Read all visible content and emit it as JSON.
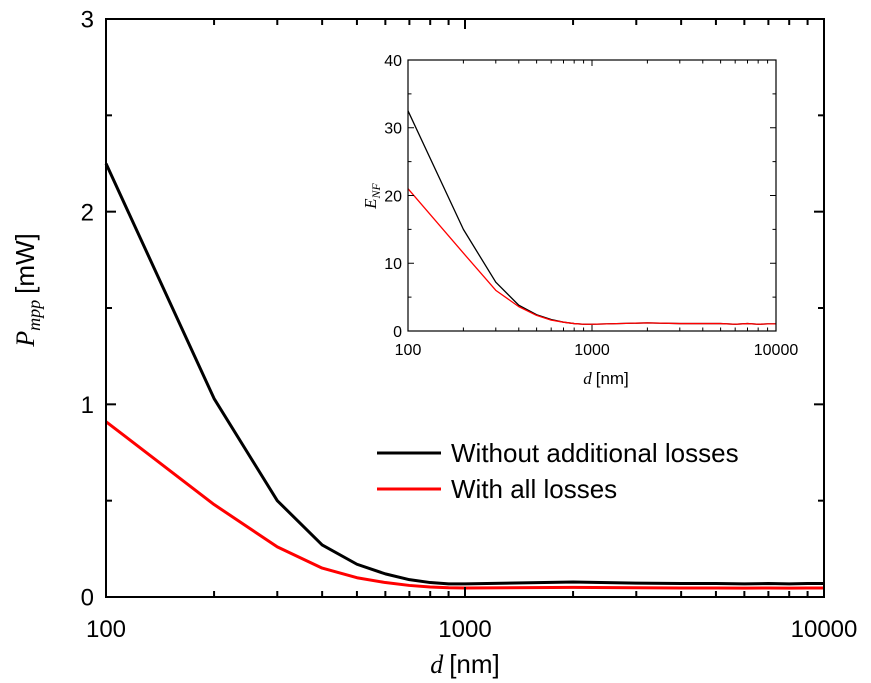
{
  "chart_data": [
    {
      "type": "line",
      "xscale": "log",
      "xlim": [
        100,
        10000
      ],
      "ylim": [
        0,
        3
      ],
      "xticks": [
        100,
        1000,
        10000
      ],
      "yticks": [
        0,
        1,
        2,
        3
      ],
      "xtick_labels": [
        "100",
        "1000",
        "10000"
      ],
      "ytick_labels": [
        "0",
        "1",
        "2",
        "3"
      ],
      "xlabel": {
        "var": "d",
        "unit": "[nm]"
      },
      "ylabel": {
        "var": "P",
        "sub": "mpp",
        "unit": "[mW]"
      },
      "legend_position": "lower-right",
      "series": [
        {
          "name": "Without additional losses",
          "color": "#000000",
          "x": [
            100,
            200,
            300,
            400,
            500,
            600,
            700,
            800,
            900,
            1000,
            2000,
            3000,
            4000,
            5000,
            6000,
            7000,
            8000,
            9000,
            10000
          ],
          "y": [
            2.25,
            1.03,
            0.5,
            0.27,
            0.17,
            0.12,
            0.09,
            0.075,
            0.068,
            0.068,
            0.078,
            0.072,
            0.07,
            0.07,
            0.068,
            0.07,
            0.068,
            0.07,
            0.07
          ]
        },
        {
          "name": "With all losses",
          "color": "#ff0000",
          "x": [
            100,
            200,
            300,
            400,
            500,
            600,
            700,
            800,
            900,
            1000,
            2000,
            3000,
            4000,
            5000,
            6000,
            7000,
            8000,
            9000,
            10000
          ],
          "y": [
            0.91,
            0.48,
            0.26,
            0.15,
            0.1,
            0.075,
            0.06,
            0.052,
            0.048,
            0.047,
            0.05,
            0.048,
            0.047,
            0.047,
            0.046,
            0.047,
            0.046,
            0.047,
            0.047
          ]
        }
      ]
    },
    {
      "type": "line",
      "xscale": "log",
      "xlim": [
        100,
        10000
      ],
      "ylim": [
        0,
        40
      ],
      "xticks": [
        100,
        1000,
        10000
      ],
      "yticks": [
        0,
        10,
        20,
        30,
        40
      ],
      "xtick_labels": [
        "100",
        "1000",
        "10000"
      ],
      "ytick_labels": [
        "0",
        "10",
        "20",
        "30",
        "40"
      ],
      "xlabel": {
        "var": "d",
        "unit": "[nm]"
      },
      "ylabel": {
        "var": "E",
        "sub": "NF",
        "unit": ""
      },
      "series": [
        {
          "color": "#000000",
          "x": [
            100,
            200,
            300,
            400,
            500,
            600,
            700,
            800,
            900,
            1000,
            2000,
            3000,
            4000,
            5000,
            6000,
            7000,
            8000,
            9000,
            10000
          ],
          "y": [
            32.5,
            15,
            7.2,
            3.8,
            2.4,
            1.7,
            1.3,
            1.1,
            1.0,
            1.0,
            1.2,
            1.1,
            1.1,
            1.1,
            1.0,
            1.1,
            1.0,
            1.05,
            1.05
          ]
        },
        {
          "color": "#ff0000",
          "x": [
            100,
            200,
            300,
            400,
            500,
            600,
            700,
            800,
            900,
            1000,
            2000,
            3000,
            4000,
            5000,
            6000,
            7000,
            8000,
            9000,
            10000
          ],
          "y": [
            21,
            11.5,
            6.0,
            3.6,
            2.3,
            1.6,
            1.3,
            1.1,
            1.0,
            1.0,
            1.2,
            1.1,
            1.1,
            1.1,
            1.0,
            1.1,
            1.0,
            1.05,
            1.05
          ]
        }
      ]
    }
  ]
}
